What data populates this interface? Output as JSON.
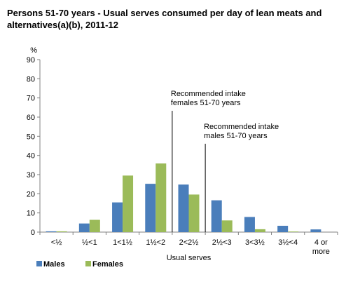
{
  "title": "Persons 51-70 years - Usual serves consumed per day of lean meats and alternatives(a)(b), 2011-12",
  "chart_data": {
    "type": "bar",
    "ylabel": "%",
    "xlabel": "Usual serves",
    "ylim": [
      0,
      90
    ],
    "yticks": [
      0,
      10,
      20,
      30,
      40,
      50,
      60,
      70,
      80,
      90
    ],
    "categories": [
      "<½",
      "½<1",
      "1<1½",
      "1½<2",
      "2<2½",
      "2½<3",
      "3<3½",
      "3½<4",
      "4 or more"
    ],
    "series": [
      {
        "name": "Males",
        "color": "#4a7ebb",
        "values": [
          0.4,
          4.5,
          15.5,
          25.2,
          24.8,
          16.6,
          7.9,
          3.3,
          1.4
        ]
      },
      {
        "name": "Females",
        "color": "#9bbb59",
        "values": [
          0.4,
          6.4,
          29.5,
          35.8,
          19.6,
          6.1,
          1.5,
          0.3,
          0
        ]
      }
    ],
    "legend_position": "bottom-left",
    "grid": false,
    "annotations": [
      {
        "text_lines": [
          "Recommended intake",
          "females 51-70 years"
        ],
        "x_boundary_after": "1½<2"
      },
      {
        "text_lines": [
          "Recommended intake",
          "males 51-70 years"
        ],
        "x_boundary_after": "2<2½"
      }
    ]
  }
}
